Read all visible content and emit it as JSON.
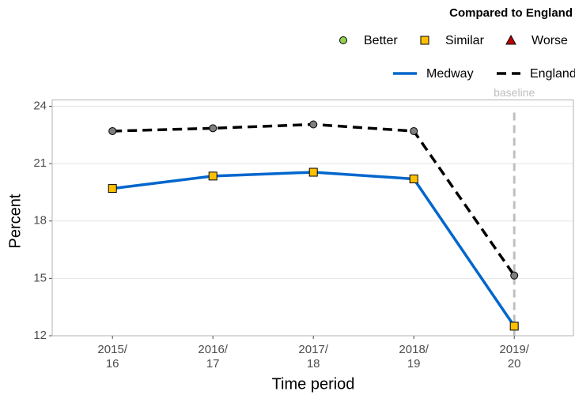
{
  "chart_data": {
    "type": "line",
    "legend_title": "Compared to England",
    "legend_markers": [
      {
        "name": "Better",
        "color": "#92d050",
        "shape": "circle"
      },
      {
        "name": "Similar",
        "color": "#ffc000",
        "shape": "square"
      },
      {
        "name": "Worse",
        "color": "#c00000",
        "shape": "triangle"
      }
    ],
    "categories": [
      [
        "2015/",
        "16"
      ],
      [
        "2016/",
        "17"
      ],
      [
        "2017/",
        "18"
      ],
      [
        "2018/",
        "19"
      ],
      [
        "2019/",
        "20"
      ]
    ],
    "series": [
      {
        "name": "Medway",
        "color": "#0066cc",
        "dash": false,
        "marker": "square",
        "marker_color": "#ffc000",
        "values": [
          19.7,
          20.35,
          20.55,
          20.2,
          12.5
        ]
      },
      {
        "name": "England",
        "color": "#000000",
        "dash": true,
        "marker": "circle",
        "marker_color": "#7f7f7f",
        "values": [
          22.7,
          22.85,
          23.05,
          22.7,
          15.15
        ]
      }
    ],
    "baseline": {
      "label": "baseline",
      "category": [
        "2019/",
        "20"
      ]
    },
    "xlabel": "Time period",
    "ylabel": "Percent",
    "ylim": [
      12,
      24
    ],
    "yticks": [
      12,
      15,
      18,
      21,
      24
    ],
    "grid": true
  }
}
